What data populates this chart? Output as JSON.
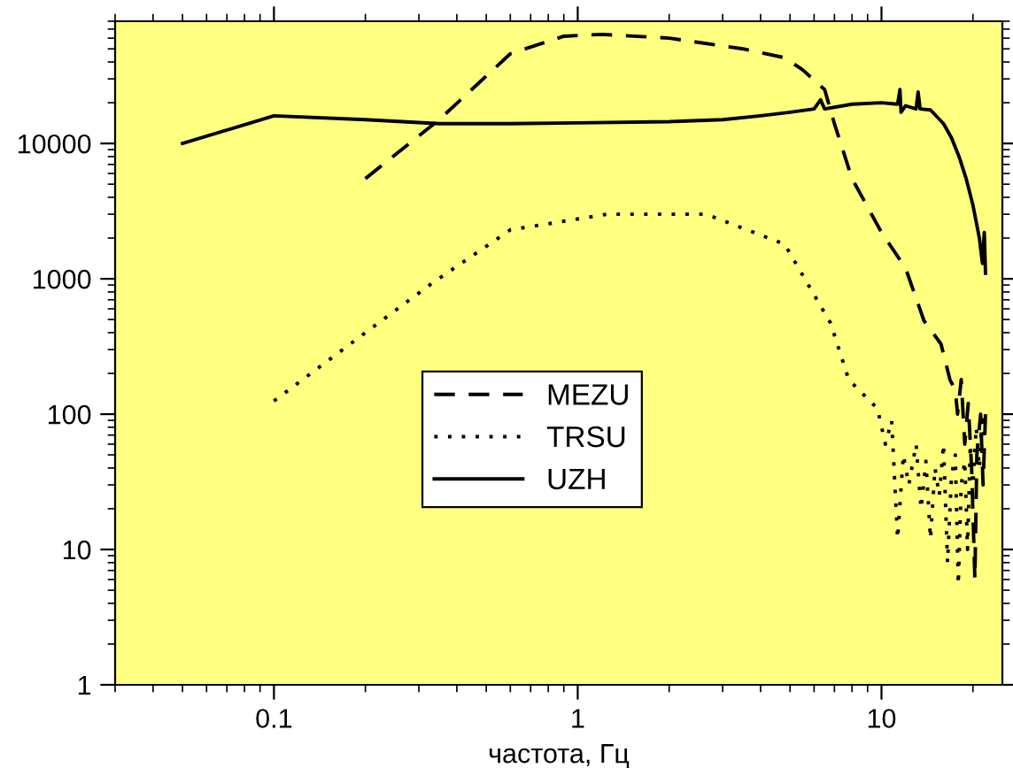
{
  "chart_data": {
    "type": "line",
    "xlabel": "частота, Гц",
    "log": "xy",
    "xlim": [
      0.03,
      25
    ],
    "ylim": [
      1,
      80000
    ],
    "xticks": [
      0.1,
      1,
      10
    ],
    "yticks": [
      1,
      10,
      100,
      1000,
      10000
    ],
    "grid": false,
    "legend": "center",
    "series": [
      {
        "name": "MEZU",
        "color": "#000000",
        "line_style": "dashed",
        "x": [
          0.2,
          0.35,
          0.6,
          0.9,
          1.2,
          2,
          3.5,
          4.8,
          5.5,
          6.5,
          7,
          8,
          10,
          12,
          13.8,
          15.7,
          16.8,
          17.5,
          17.8,
          18.3,
          18.8,
          19.3,
          19.8,
          20.3,
          20.6,
          21.2,
          21.6,
          22
        ],
        "values": [
          5500,
          15000,
          46000,
          62000,
          64000,
          60000,
          50000,
          43000,
          35000,
          25000,
          14000,
          5500,
          2200,
          1200,
          490,
          330,
          180,
          150,
          100,
          180,
          60,
          120,
          40,
          6,
          50,
          100,
          30,
          100
        ]
      },
      {
        "name": "TRSU",
        "color": "#000000",
        "line_style": "dotted",
        "x": [
          0.1,
          0.2,
          0.33,
          0.6,
          1.25,
          2.65,
          4.8,
          6.8,
          7.8,
          9.7,
          10.3,
          10.8,
          11.3,
          11.8,
          12.3,
          13,
          13.5,
          14,
          14.5,
          15,
          15.5,
          16,
          16.5,
          17,
          17.5,
          17.9,
          18.3,
          18.8,
          19.2,
          19.6,
          20,
          20.5,
          21,
          21.5,
          22
        ],
        "values": [
          125,
          400,
          920,
          2300,
          3000,
          3000,
          1800,
          470,
          180,
          110,
          60,
          90,
          12,
          50,
          30,
          60,
          20,
          45,
          12,
          40,
          25,
          60,
          8,
          35,
          50,
          5.5,
          30,
          45,
          10,
          60,
          30,
          80,
          40,
          100,
          60
        ]
      },
      {
        "name": "UZH",
        "color": "#000000",
        "line_style": "solid",
        "x": [
          0.05,
          0.1,
          0.2,
          0.35,
          0.6,
          1,
          2,
          3,
          4,
          5,
          6,
          6.3,
          6.5,
          8,
          10,
          11.3,
          11.5,
          11.6,
          12,
          13,
          13.2,
          13.4,
          14.5,
          16,
          17,
          18,
          19,
          20,
          21,
          21.5,
          21.8,
          22
        ],
        "values": [
          10000,
          16000,
          15000,
          14000,
          14000,
          14200,
          14500,
          15000,
          16000,
          17000,
          18000,
          21000,
          18000,
          19500,
          20000,
          19500,
          25000,
          17000,
          19000,
          18000,
          24000,
          18000,
          17700,
          14000,
          11000,
          8000,
          5500,
          3500,
          2000,
          1300,
          2200,
          1100
        ]
      }
    ]
  }
}
